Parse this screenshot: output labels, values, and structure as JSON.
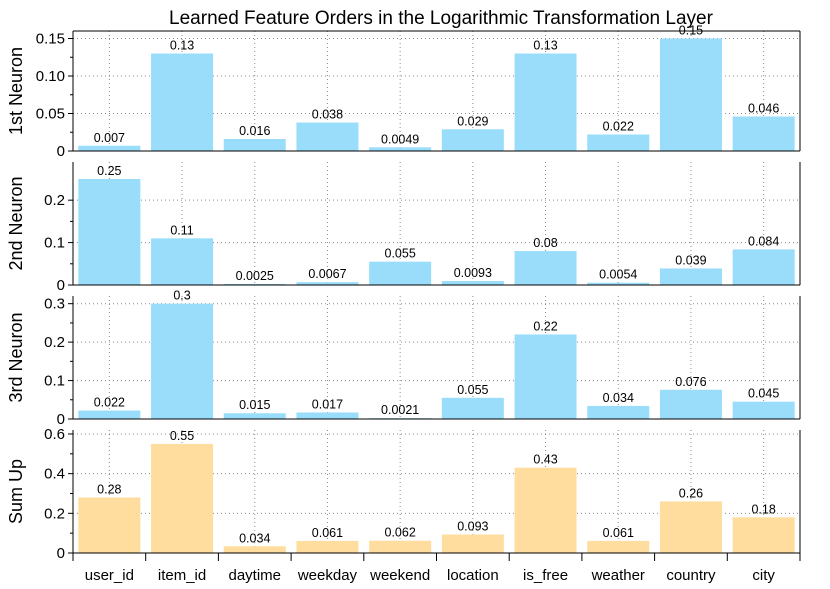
{
  "chart_data": {
    "type": "bar",
    "title": "Learned Feature Orders in the Logarithmic Transformation Layer",
    "categories": [
      "user_id",
      "item_id",
      "daytime",
      "weekday",
      "weekend",
      "location",
      "is_free",
      "weather",
      "country",
      "city"
    ],
    "grid": true,
    "panels": [
      {
        "ylabel": "1st Neuron",
        "color": "#99ddfb",
        "ylim": [
          0,
          0.16
        ],
        "yticks": [
          0,
          0.05,
          0.1,
          0.15
        ],
        "ytick_labels": [
          "0",
          "0.05",
          "0.10",
          "0.15"
        ],
        "values": [
          0.007,
          0.13,
          0.016,
          0.038,
          0.0049,
          0.029,
          0.13,
          0.022,
          0.15,
          0.046
        ],
        "value_labels": [
          "0.007",
          "0.13",
          "0.016",
          "0.038",
          "0.0049",
          "0.029",
          "0.13",
          "0.022",
          "0.15",
          "0.046"
        ]
      },
      {
        "ylabel": "2nd Neuron",
        "color": "#99ddfb",
        "ylim": [
          0,
          0.29
        ],
        "yticks": [
          0,
          0.1,
          0.2
        ],
        "ytick_labels": [
          "0",
          "0.1",
          "0.2"
        ],
        "values": [
          0.25,
          0.11,
          0.0025,
          0.0067,
          0.055,
          0.0093,
          0.08,
          0.0054,
          0.039,
          0.084
        ],
        "value_labels": [
          "0.25",
          "0.11",
          "0.0025",
          "0.0067",
          "0.055",
          "0.0093",
          "0.08",
          "0.0054",
          "0.039",
          "0.084"
        ]
      },
      {
        "ylabel": "3rd Neuron",
        "color": "#99ddfb",
        "ylim": [
          0,
          0.32
        ],
        "yticks": [
          0,
          0.1,
          0.2,
          0.3
        ],
        "ytick_labels": [
          "0",
          "0.1",
          "0.2",
          "0.3"
        ],
        "values": [
          0.022,
          0.3,
          0.015,
          0.017,
          0.0021,
          0.055,
          0.22,
          0.034,
          0.076,
          0.045
        ],
        "value_labels": [
          "0.022",
          "0.3",
          "0.015",
          "0.017",
          "0.0021",
          "0.055",
          "0.22",
          "0.034",
          "0.076",
          "0.045"
        ]
      },
      {
        "ylabel": "Sum Up",
        "color": "#fedd9e",
        "ylim": [
          0,
          0.62
        ],
        "yticks": [
          0,
          0.2,
          0.4,
          0.6
        ],
        "ytick_labels": [
          "0",
          "0.2",
          "0.4",
          "0.6"
        ],
        "values": [
          0.28,
          0.55,
          0.034,
          0.061,
          0.062,
          0.093,
          0.43,
          0.061,
          0.26,
          0.18
        ],
        "value_labels": [
          "0.28",
          "0.55",
          "0.034",
          "0.061",
          "0.062",
          "0.093",
          "0.43",
          "0.061",
          "0.26",
          "0.18"
        ]
      }
    ]
  }
}
